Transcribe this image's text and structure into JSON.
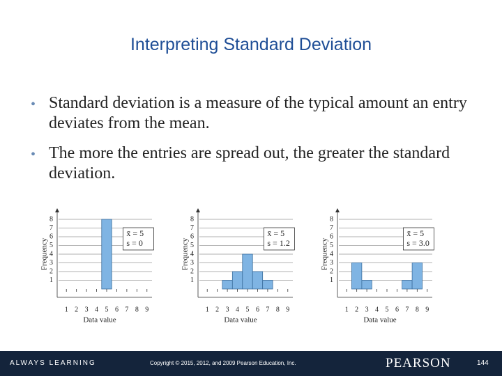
{
  "title": "Interpreting Standard Deviation",
  "bullets": [
    "Standard deviation is a measure of the typical amount an entry deviates from the mean.",
    "The more the entries are spread out, the greater the standard deviation."
  ],
  "chart_data": [
    {
      "type": "bar",
      "categories": [
        "1",
        "2",
        "3",
        "4",
        "5",
        "6",
        "7",
        "8",
        "9"
      ],
      "values": [
        0,
        0,
        0,
        0,
        8,
        0,
        0,
        0,
        0
      ],
      "color": "#7fb4e3",
      "ylim": [
        0,
        8
      ],
      "yticks": [
        1,
        2,
        3,
        4,
        5,
        6,
        7,
        8
      ],
      "grid": true,
      "y_label": "Frequency",
      "x_label": "Data value",
      "annotation": [
        "x̄ = 5",
        "s = 0"
      ]
    },
    {
      "type": "bar",
      "categories": [
        "1",
        "2",
        "3",
        "4",
        "5",
        "6",
        "7",
        "8",
        "9"
      ],
      "values": [
        0,
        0,
        1,
        2,
        4,
        2,
        1,
        0,
        0
      ],
      "color": "#7fb4e3",
      "ylim": [
        0,
        8
      ],
      "yticks": [
        1,
        2,
        3,
        4,
        5,
        6,
        7,
        8
      ],
      "grid": true,
      "y_label": "Frequency",
      "x_label": "Data value",
      "annotation": [
        "x̄ = 5",
        "s = 1.2"
      ]
    },
    {
      "type": "bar",
      "categories": [
        "1",
        "2",
        "3",
        "4",
        "5",
        "6",
        "7",
        "8",
        "9"
      ],
      "values": [
        0,
        3,
        1,
        0,
        0,
        0,
        1,
        3,
        0
      ],
      "color": "#7fb4e3",
      "ylim": [
        0,
        8
      ],
      "yticks": [
        1,
        2,
        3,
        4,
        5,
        6,
        7,
        8
      ],
      "grid": true,
      "y_label": "Frequency",
      "x_label": "Data value",
      "annotation": [
        "x̄ = 5",
        "s = 3.0"
      ]
    }
  ],
  "footer": {
    "tagline": "ALWAYS LEARNING",
    "copyright": "Copyright © 2015, 2012, and 2009 Pearson Education, Inc.",
    "brand": "PEARSON",
    "page": "144"
  }
}
